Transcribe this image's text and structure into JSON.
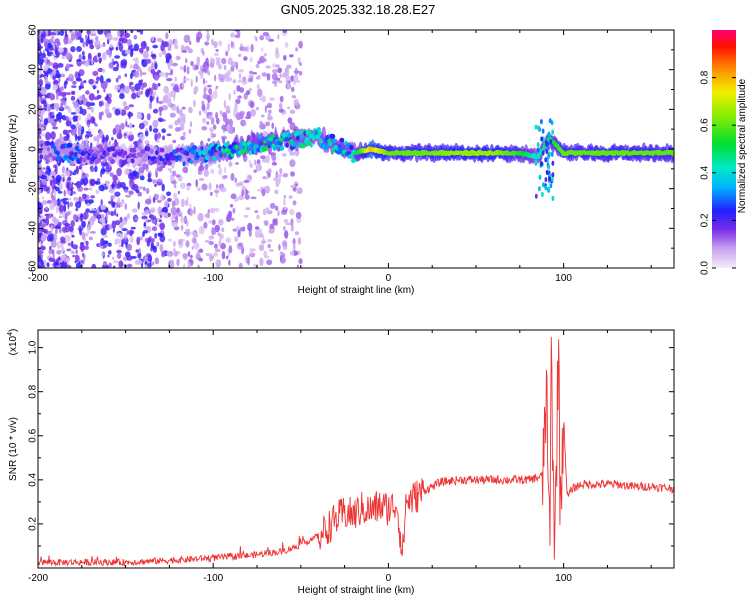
{
  "title": "GN05.2025.332.18.28.E27",
  "chart_data": [
    {
      "type": "heatmap",
      "title": "GN05.2025.332.18.28.E27",
      "xlabel": "Height of straight line (km)",
      "ylabel": "Frequency (Hz)",
      "xlim": [
        -200,
        163
      ],
      "ylim": [
        -60,
        60
      ],
      "x_ticks": [
        "-200",
        "-100",
        "0",
        "100"
      ],
      "y_ticks": [
        "60",
        "40",
        "20",
        "0",
        "-20",
        "-40",
        "-60"
      ],
      "colorbar": {
        "label": "Normalized spectral amplitude",
        "ticks": [
          "0.0",
          "0.2",
          "0.4",
          "0.6",
          "0.8"
        ],
        "range": [
          0,
          1
        ]
      },
      "ridge": [
        {
          "x": -200,
          "f": 0,
          "a": 0.15
        },
        {
          "x": -185,
          "f": -2,
          "a": 0.3
        },
        {
          "x": -150,
          "f": -3,
          "a": 0.15
        },
        {
          "x": -120,
          "f": -4,
          "a": 0.25
        },
        {
          "x": -100,
          "f": -2,
          "a": 0.4
        },
        {
          "x": -80,
          "f": 2,
          "a": 0.45
        },
        {
          "x": -60,
          "f": 4,
          "a": 0.45
        },
        {
          "x": -40,
          "f": 6,
          "a": 0.4
        },
        {
          "x": -30,
          "f": 2,
          "a": 0.45
        },
        {
          "x": -20,
          "f": -2,
          "a": 0.4
        },
        {
          "x": -10,
          "f": 0,
          "a": 0.8
        },
        {
          "x": 0,
          "f": -2,
          "a": 0.6
        },
        {
          "x": 20,
          "f": -2,
          "a": 0.6
        },
        {
          "x": 40,
          "f": -2,
          "a": 0.65
        },
        {
          "x": 60,
          "f": -2,
          "a": 0.65
        },
        {
          "x": 75,
          "f": -2,
          "a": 0.55
        },
        {
          "x": 85,
          "f": -4,
          "a": 0.4
        },
        {
          "x": 92,
          "f": 5,
          "a": 0.5
        },
        {
          "x": 100,
          "f": -2,
          "a": 0.6
        },
        {
          "x": 130,
          "f": -2,
          "a": 0.6
        },
        {
          "x": 163,
          "f": -2,
          "a": 0.6
        }
      ]
    },
    {
      "type": "line",
      "xlabel": "Height of straight line (km)",
      "ylabel": "SNR (10 * v/v)",
      "y_multiplier": "(x10",
      "y_exponent": "4",
      "y_multiplier_close": ")",
      "xlim": [
        -200,
        163
      ],
      "ylim": [
        0,
        1.08
      ],
      "x_ticks": [
        "-200",
        "-100",
        "0",
        "100"
      ],
      "y_ticks": [
        "1.0",
        "0.8",
        "0.6",
        "0.4",
        "0.2"
      ],
      "series": [
        {
          "name": "SNR",
          "color": "#ee3333",
          "x": [
            -200,
            -150,
            -120,
            -100,
            -80,
            -60,
            -50,
            -40,
            -35,
            -30,
            -25,
            -20,
            -15,
            -10,
            -5,
            0,
            5,
            8,
            10,
            15,
            20,
            25,
            30,
            40,
            50,
            60,
            70,
            80,
            85,
            88,
            90,
            92,
            93,
            95,
            97,
            98,
            100,
            102,
            105,
            110,
            120,
            130,
            140,
            150,
            163
          ],
          "y": [
            0.02,
            0.02,
            0.03,
            0.04,
            0.05,
            0.07,
            0.1,
            0.14,
            0.18,
            0.22,
            0.25,
            0.24,
            0.27,
            0.26,
            0.28,
            0.27,
            0.29,
            0.05,
            0.3,
            0.32,
            0.35,
            0.37,
            0.39,
            0.4,
            0.4,
            0.4,
            0.4,
            0.4,
            0.41,
            0.42,
            0.8,
            0.1,
            0.95,
            0.05,
            1.06,
            0.3,
            0.7,
            0.32,
            0.36,
            0.38,
            0.38,
            0.38,
            0.37,
            0.37,
            0.36
          ]
        }
      ]
    }
  ],
  "colors": {
    "snr_line": "#ee3333",
    "axis": "#000000",
    "background": "#ffffff"
  }
}
